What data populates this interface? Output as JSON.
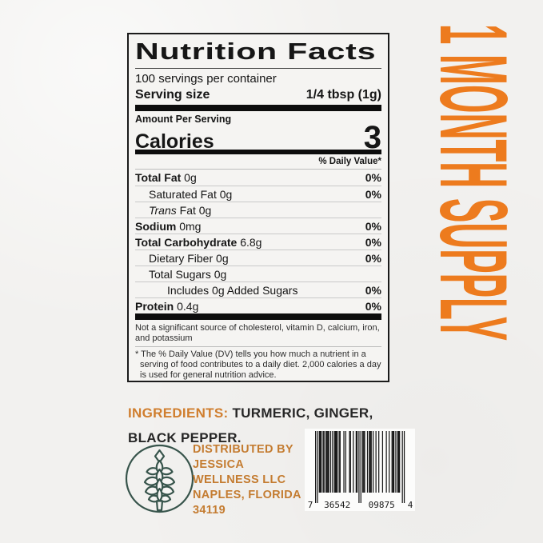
{
  "banner": {
    "text": "1 MONTH SUPPLY",
    "color": "#ED7B1E"
  },
  "label": {
    "title": "Nutrition Facts",
    "servings_per_container": "100 servings per container",
    "serving_size_label": "Serving size",
    "serving_size_value": "1/4 tbsp (1g)",
    "amount_per_serving": "Amount Per Serving",
    "calories_label": "Calories",
    "calories_value": "3",
    "daily_value_header": "% Daily Value*",
    "rows": [
      {
        "name": "Total Fat",
        "amount": "0g",
        "dv": "0%",
        "bold": true,
        "indent": 0
      },
      {
        "name": "Saturated Fat",
        "amount": "0g",
        "dv": "0%",
        "bold": false,
        "indent": 1
      },
      {
        "name": "Trans Fat",
        "amount": "0g",
        "dv": "",
        "bold": false,
        "indent": 1,
        "italic_prefix": "Trans"
      },
      {
        "name": "Sodium",
        "amount": "0mg",
        "dv": "0%",
        "bold": true,
        "indent": 0
      },
      {
        "name": "Total Carbohydrate",
        "amount": "6.8g",
        "dv": "0%",
        "bold": true,
        "indent": 0
      },
      {
        "name": "Dietary Fiber",
        "amount": "0g",
        "dv": "0%",
        "bold": false,
        "indent": 1
      },
      {
        "name": "Total Sugars",
        "amount": "0g",
        "dv": "",
        "bold": false,
        "indent": 1
      },
      {
        "name": "Includes 0g Added Sugars",
        "amount": "",
        "dv": "0%",
        "bold": false,
        "indent": 2
      },
      {
        "name": "Protein",
        "amount": "0.4g",
        "dv": "0%",
        "bold": true,
        "indent": 0
      }
    ],
    "footnote1": "Not a significant source of cholesterol, vitamin D, calcium, iron, and potassium",
    "footnote2": "* The % Daily Value (DV) tells you how much a nutrient in a serving of food contributes to a daily diet. 2,000 calories a day is used for general nutrition advice."
  },
  "ingredients": {
    "label": "INGREDIENTS:",
    "value": "TURMERIC, GINGER, BLACK PEPPER."
  },
  "distributor": {
    "lines": [
      "DISTRIBUTED BY",
      "JESSICA",
      "WELLNESS LLC",
      "NAPLES, FLORIDA",
      "34119"
    ]
  },
  "barcode": {
    "digits": "736542098754",
    "display_left": "7",
    "display_group1": "36542",
    "display_group2": "09875",
    "display_right": "4"
  },
  "logo": {
    "name": "wheat-plant-emblem"
  }
}
